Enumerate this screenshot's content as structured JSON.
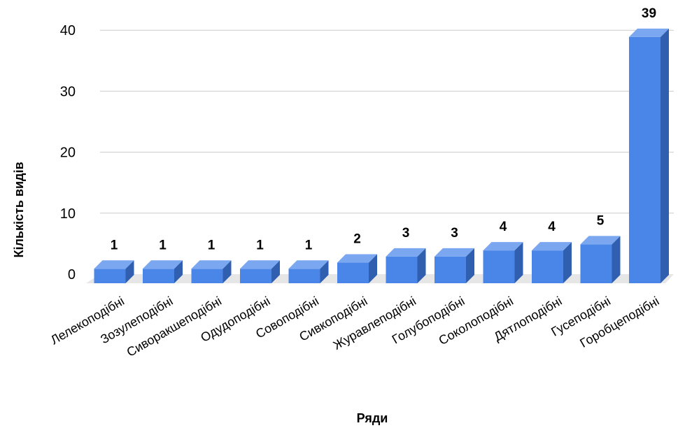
{
  "chart_data": {
    "type": "bar",
    "categories": [
      "Лелекоподібні",
      "Зозулеподібні",
      "Сиворакшеподібні",
      "Одудоподібні",
      "Совоподібні",
      "Сивкоподібні",
      "Журавлеподібні",
      "Голубоподібні",
      "Соколоподібні",
      "Дятлоподібні",
      "Гусеподібні",
      "Горобцеподібні"
    ],
    "values": [
      1,
      1,
      1,
      1,
      1,
      2,
      3,
      3,
      4,
      4,
      5,
      39
    ],
    "data_labels": [
      "1",
      "1",
      "1",
      "1",
      "1",
      "2",
      "3",
      "3",
      "4",
      "4",
      "5",
      "39"
    ],
    "yticks": [
      "0",
      "10",
      "20",
      "30",
      "40"
    ],
    "ytick_values": [
      0,
      10,
      20,
      30,
      40
    ],
    "title": "",
    "xlabel": "Ряди",
    "ylabel": "Кількість видів",
    "ylim": [
      0,
      42
    ],
    "grid": true,
    "style": "3d-bar",
    "colors": {
      "bar_front": "#4a86e8",
      "bar_side": "#2f5fae",
      "bar_top": "#7aa7f0",
      "floor": "#e6e6e6",
      "grid": "#cccccc",
      "text": "#000000"
    }
  }
}
